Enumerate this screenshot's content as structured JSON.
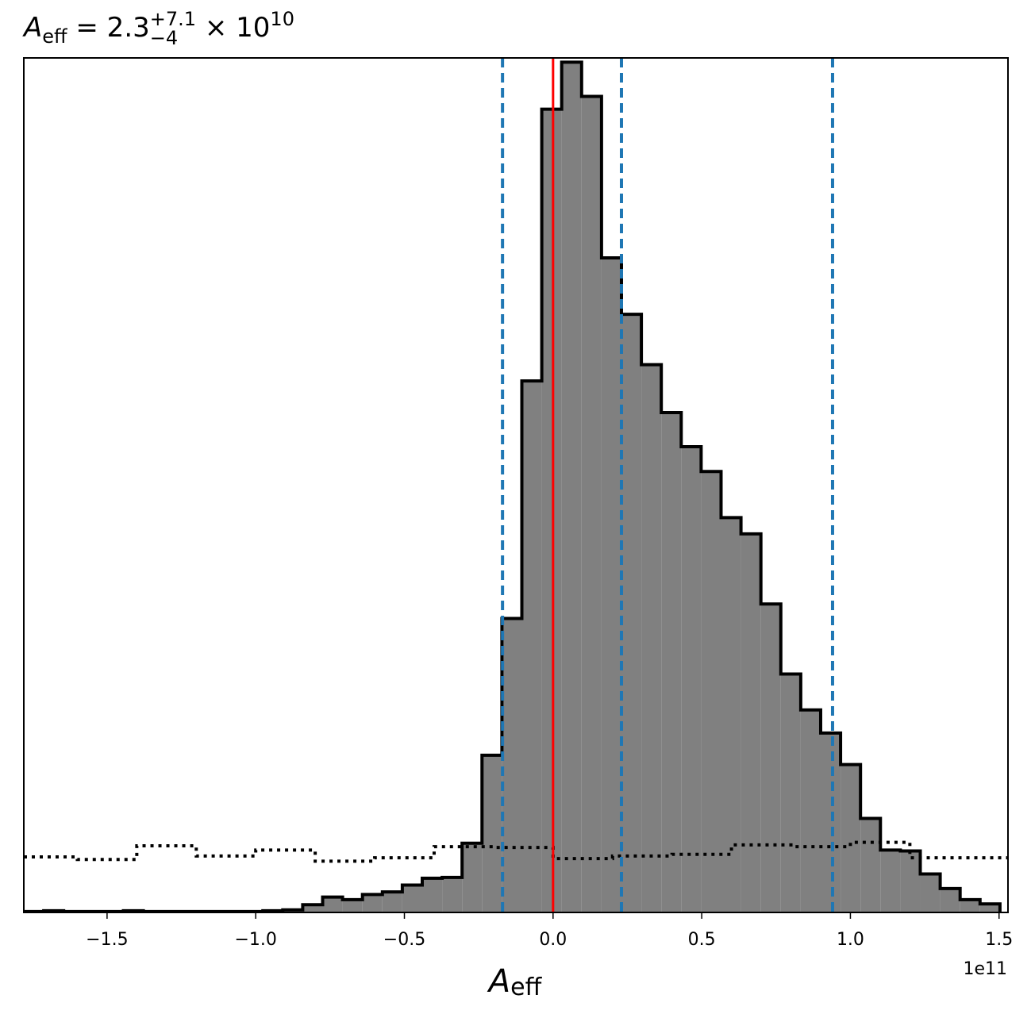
{
  "chart_data": {
    "type": "histogram",
    "title": {
      "lhs_symbol": "A",
      "lhs_subscript": "eff",
      "equals": "=",
      "median": "2.3",
      "upper": "+7.1",
      "lower": "−4",
      "times": "×",
      "base": "10",
      "exponent": "10"
    },
    "xlabel": {
      "symbol": "A",
      "subscript": "eff"
    },
    "x_offset_label": "1e11",
    "x_scale": 100000000000.0,
    "xlim": [
      -1.78,
      1.53
    ],
    "ylim": [
      0,
      1.0
    ],
    "grid": false,
    "x_ticks": [
      {
        "value": -1.5,
        "label": "−1.5"
      },
      {
        "value": -1.0,
        "label": "−1.0"
      },
      {
        "value": -0.5,
        "label": "−0.5"
      },
      {
        "value": 0.0,
        "label": "0.0"
      },
      {
        "value": 0.5,
        "label": "0.5"
      },
      {
        "value": 1.0,
        "label": "1.0"
      },
      {
        "value": 1.5,
        "label": "1.5"
      }
    ],
    "y_ticks": [],
    "posterior": {
      "fill_color": "#808080",
      "edge_color": "#000000",
      "bin_edges": [
        -1.78,
        -1.713,
        -1.646,
        -1.579,
        -1.512,
        -1.445,
        -1.378,
        -1.311,
        -1.244,
        -1.177,
        -1.11,
        -1.043,
        -0.976,
        -0.909,
        -0.842,
        -0.775,
        -0.708,
        -0.641,
        -0.574,
        -0.507,
        -0.44,
        -0.373,
        -0.306,
        -0.239,
        -0.172,
        -0.105,
        -0.038,
        0.029,
        0.096,
        0.163,
        0.23,
        0.297,
        0.364,
        0.431,
        0.498,
        0.565,
        0.632,
        0.699,
        0.766,
        0.833,
        0.9,
        0.967,
        1.034,
        1.101,
        1.168,
        1.235,
        1.302,
        1.369,
        1.436,
        1.503
      ],
      "counts": [
        0.001,
        0.002,
        0.001,
        0.001,
        0.001,
        0.002,
        0.001,
        0.001,
        0.001,
        0.001,
        0.001,
        0.001,
        0.002,
        0.003,
        0.009,
        0.018,
        0.015,
        0.021,
        0.024,
        0.032,
        0.04,
        0.041,
        0.081,
        0.184,
        0.344,
        0.622,
        0.94,
        0.995,
        0.955,
        0.766,
        0.7,
        0.641,
        0.585,
        0.545,
        0.516,
        0.462,
        0.443,
        0.361,
        0.279,
        0.237,
        0.21,
        0.173,
        0.11,
        0.073,
        0.072,
        0.045,
        0.028,
        0.015,
        0.01
      ]
    },
    "prior": {
      "line_style": "dotted",
      "color": "#000000",
      "bin_edges": [
        -1.78,
        -1.6,
        -1.4,
        -1.2,
        -1.0,
        -0.8,
        -0.6,
        -0.4,
        -0.2,
        0.0,
        0.2,
        0.4,
        0.6,
        0.8,
        1.0,
        1.2,
        1.53
      ],
      "counts": [
        0.065,
        0.062,
        0.078,
        0.066,
        0.073,
        0.06,
        0.064,
        0.077,
        0.076,
        0.063,
        0.066,
        0.068,
        0.079,
        0.077,
        0.082,
        0.064
      ]
    },
    "truth_line": {
      "value": 0.0,
      "color": "#ff0000"
    },
    "quantile_lines": {
      "color": "#1f77b4",
      "style": "dashed",
      "values": [
        -0.17,
        0.23,
        0.94
      ]
    }
  }
}
